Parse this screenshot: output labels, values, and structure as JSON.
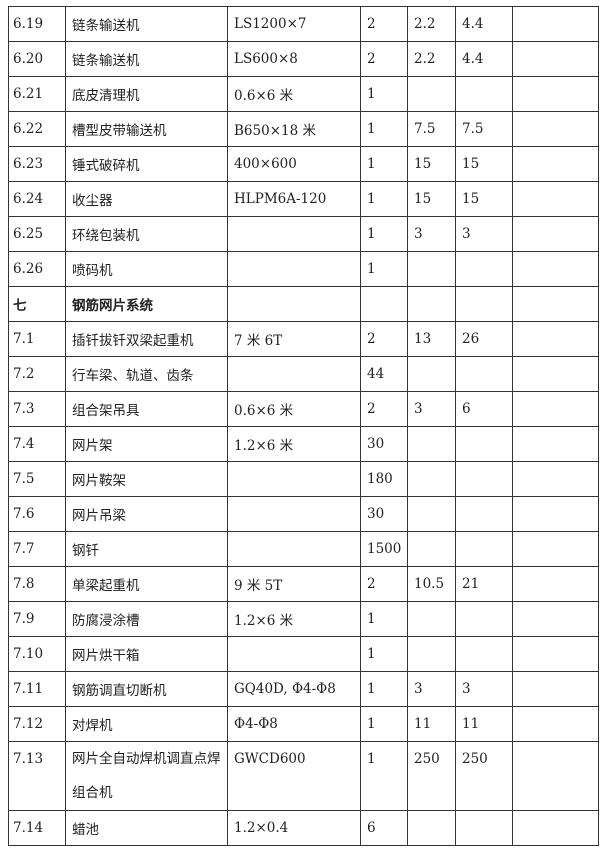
{
  "rows": [
    {
      "no": "6.19",
      "name": "链条输送机",
      "spec": "LS1200×7",
      "qty": "2",
      "unit_power": "2.2",
      "total_power": "4.4",
      "note": ""
    },
    {
      "no": "6.20",
      "name": "链条输送机",
      "spec": "LS600×8",
      "qty": "2",
      "unit_power": "2.2",
      "total_power": "4.4",
      "note": ""
    },
    {
      "no": "6.21",
      "name": "底皮清理机",
      "spec": "0.6×6 米",
      "qty": "1",
      "unit_power": "",
      "total_power": "",
      "note": ""
    },
    {
      "no": "6.22",
      "name": "槽型皮带输送机",
      "spec": "B650×18 米",
      "qty": "1",
      "unit_power": "7.5",
      "total_power": "7.5",
      "note": ""
    },
    {
      "no": "6.23",
      "name": "锤式破碎机",
      "spec": "400×600",
      "qty": "1",
      "unit_power": "15",
      "total_power": "15",
      "note": ""
    },
    {
      "no": "6.24",
      "name": "收尘器",
      "spec": "HLPM6A-120",
      "qty": "1",
      "unit_power": "15",
      "total_power": "15",
      "note": ""
    },
    {
      "no": "6.25",
      "name": "环绕包装机",
      "spec": "",
      "qty": "1",
      "unit_power": "3",
      "total_power": "3",
      "note": ""
    },
    {
      "no": "6.26",
      "name": "喷码机",
      "spec": "",
      "qty": "1",
      "unit_power": "",
      "total_power": "",
      "note": ""
    },
    {
      "no": "七",
      "name": "钢筋网片系统",
      "spec": "",
      "qty": "",
      "unit_power": "",
      "total_power": "",
      "note": "",
      "section": true
    },
    {
      "no": "7.1",
      "name": "插钎拔钎双梁起重机",
      "spec": "7 米 6T",
      "qty": "2",
      "unit_power": "13",
      "total_power": "26",
      "note": ""
    },
    {
      "no": "7.2",
      "name": "行车梁、轨道、齿条",
      "spec": "",
      "qty": "44",
      "unit_power": "",
      "total_power": "",
      "note": ""
    },
    {
      "no": "7.3",
      "name": "组合架吊具",
      "spec": "0.6×6 米",
      "qty": "2",
      "unit_power": "3",
      "total_power": "6",
      "note": ""
    },
    {
      "no": "7.4",
      "name": "网片架",
      "spec": "1.2×6 米",
      "qty": "30",
      "unit_power": "",
      "total_power": "",
      "note": ""
    },
    {
      "no": "7.5",
      "name": "网片鞍架",
      "spec": "",
      "qty": "180",
      "unit_power": "",
      "total_power": "",
      "note": ""
    },
    {
      "no": "7.6",
      "name": "网片吊梁",
      "spec": "",
      "qty": "30",
      "unit_power": "",
      "total_power": "",
      "note": ""
    },
    {
      "no": "7.7",
      "name": "钢钎",
      "spec": "",
      "qty": "1500",
      "unit_power": "",
      "total_power": "",
      "note": ""
    },
    {
      "no": "7.8",
      "name": "单梁起重机",
      "spec": "9 米 5T",
      "qty": "2",
      "unit_power": "10.5",
      "total_power": "21",
      "note": ""
    },
    {
      "no": "7.9",
      "name": "防腐浸涂槽",
      "spec": "1.2×6 米",
      "qty": "1",
      "unit_power": "",
      "total_power": "",
      "note": ""
    },
    {
      "no": "7.10",
      "name": "网片烘干箱",
      "spec": "",
      "qty": "1",
      "unit_power": "",
      "total_power": "",
      "note": ""
    },
    {
      "no": "7.11",
      "name": "钢筋调直切断机",
      "spec": "GQ40D, Φ4-Φ8",
      "qty": "1",
      "unit_power": "3",
      "total_power": "3",
      "note": ""
    },
    {
      "no": "7.12",
      "name": "对焊机",
      "spec": " Φ4-Φ8",
      "qty": "1",
      "unit_power": "11",
      "total_power": "11",
      "note": ""
    },
    {
      "no": "7.13",
      "name": "网片全自动焊机调直点焊组合机",
      "spec": "GWCD600",
      "qty": "1",
      "unit_power": "250",
      "total_power": "250",
      "note": "",
      "tall": true
    },
    {
      "no": "7.14",
      "name": "蜡池",
      "spec": "1.2×0.4",
      "qty": "6",
      "unit_power": "",
      "total_power": "",
      "note": ""
    }
  ]
}
